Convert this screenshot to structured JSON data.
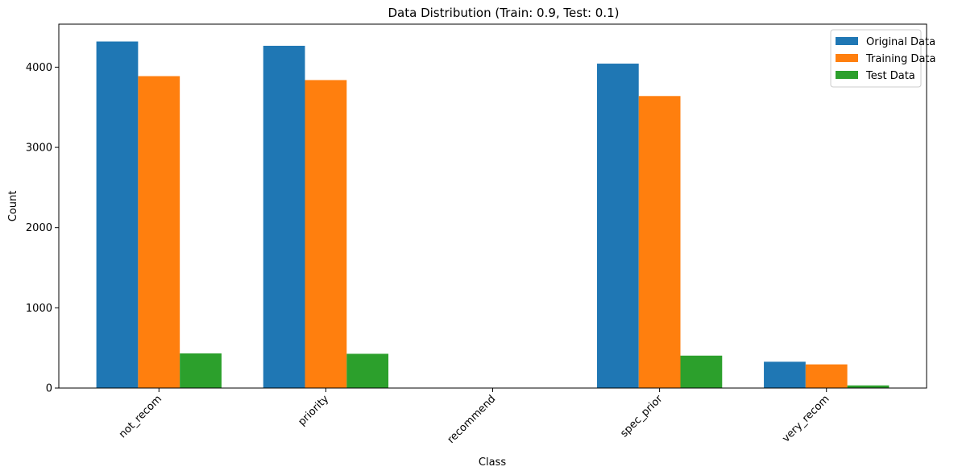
{
  "chart_data": {
    "type": "bar",
    "title": "Data Distribution (Train: 0.9, Test: 0.1)",
    "xlabel": "Class",
    "ylabel": "Count",
    "categories": [
      "not_recom",
      "priority",
      "recommend",
      "spec_prior",
      "very_recom"
    ],
    "series": [
      {
        "name": "Original Data",
        "color": "#1f77b4",
        "values": [
          4320,
          4266,
          2,
          4044,
          328
        ]
      },
      {
        "name": "Training Data",
        "color": "#ff7f0e",
        "values": [
          3888,
          3839,
          2,
          3640,
          295
        ]
      },
      {
        "name": "Test Data",
        "color": "#2ca02c",
        "values": [
          432,
          427,
          0,
          404,
          33
        ]
      }
    ],
    "ylim": [
      0,
      4536
    ],
    "yticks": [
      0,
      1000,
      2000,
      3000,
      4000
    ],
    "legend_position": "top-right",
    "grid": false,
    "xtick_rotation": 45
  }
}
